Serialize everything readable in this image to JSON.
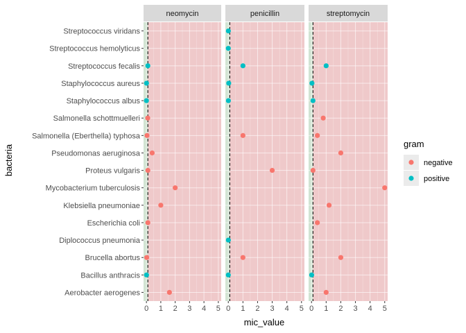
{
  "chart_data": {
    "type": "scatter",
    "xlabel": "mic_value",
    "ylabel": "bacteria",
    "xlim": [
      -0.2,
      5.2
    ],
    "xticks": [
      0,
      1,
      2,
      3,
      4,
      5
    ],
    "vline_x": 0.1,
    "shading": {
      "below_color": "#d2e4d3",
      "above_color": "#efc9ca"
    },
    "categories": [
      "Streptococcus viridans",
      "Streptococcus hemolyticus",
      "Streptococcus fecalis",
      "Staphylococcus aureus",
      "Staphylococcus albus",
      "Salmonella schottmuelleri",
      "Salmonella (Eberthella) typhosa",
      "Pseudomonas aeruginosa",
      "Proteus vulgaris",
      "Mycobacterium tuberculosis",
      "Klebsiella pneumoniae",
      "Escherichia coli",
      "Diplococcus pneumonia",
      "Brucella abortus",
      "Bacillus anthracis",
      "Aerobacter aerogenes"
    ],
    "legend": {
      "title": "gram",
      "position": "right",
      "entries": [
        {
          "label": "negative",
          "color": "#f8766d"
        },
        {
          "label": "positive",
          "color": "#00bfc4"
        }
      ]
    },
    "panels": [
      {
        "name": "neomycin",
        "points": [
          {
            "bacteria": "Streptococcus fecalis",
            "x": 0.1,
            "gram": "positive"
          },
          {
            "bacteria": "Staphylococcus aureus",
            "x": 0.007,
            "gram": "positive"
          },
          {
            "bacteria": "Staphylococcus albus",
            "x": 0.001,
            "gram": "positive"
          },
          {
            "bacteria": "Salmonella schottmuelleri",
            "x": 0.09,
            "gram": "negative"
          },
          {
            "bacteria": "Salmonella (Eberthella) typhosa",
            "x": 0.04,
            "gram": "negative"
          },
          {
            "bacteria": "Pseudomonas aeruginosa",
            "x": 0.4,
            "gram": "negative"
          },
          {
            "bacteria": "Proteus vulgaris",
            "x": 0.1,
            "gram": "negative"
          },
          {
            "bacteria": "Mycobacterium tuberculosis",
            "x": 2,
            "gram": "negative"
          },
          {
            "bacteria": "Klebsiella pneumoniae",
            "x": 1,
            "gram": "negative"
          },
          {
            "bacteria": "Escherichia coli",
            "x": 0.1,
            "gram": "negative"
          },
          {
            "bacteria": "Brucella abortus",
            "x": 0.02,
            "gram": "negative"
          },
          {
            "bacteria": "Bacillus anthracis",
            "x": 0.007,
            "gram": "positive"
          },
          {
            "bacteria": "Aerobacter aerogenes",
            "x": 1.6,
            "gram": "negative"
          }
        ]
      },
      {
        "name": "penicillin",
        "points": [
          {
            "bacteria": "Streptococcus viridans",
            "x": 0.005,
            "gram": "positive"
          },
          {
            "bacteria": "Streptococcus hemolyticus",
            "x": 0.001,
            "gram": "positive"
          },
          {
            "bacteria": "Streptococcus fecalis",
            "x": 1,
            "gram": "positive"
          },
          {
            "bacteria": "Staphylococcus aureus",
            "x": 0.03,
            "gram": "positive"
          },
          {
            "bacteria": "Staphylococcus albus",
            "x": 0.007,
            "gram": "positive"
          },
          {
            "bacteria": "Salmonella (Eberthella) typhosa",
            "x": 1,
            "gram": "negative"
          },
          {
            "bacteria": "Proteus vulgaris",
            "x": 3,
            "gram": "negative"
          },
          {
            "bacteria": "Diplococcus pneumonia",
            "x": 0.005,
            "gram": "positive"
          },
          {
            "bacteria": "Brucella abortus",
            "x": 1,
            "gram": "negative"
          },
          {
            "bacteria": "Bacillus anthracis",
            "x": 0.001,
            "gram": "positive"
          }
        ]
      },
      {
        "name": "streptomycin",
        "points": [
          {
            "bacteria": "Streptococcus fecalis",
            "x": 1,
            "gram": "positive"
          },
          {
            "bacteria": "Staphylococcus aureus",
            "x": 0.03,
            "gram": "positive"
          },
          {
            "bacteria": "Staphylococcus albus",
            "x": 0.1,
            "gram": "positive"
          },
          {
            "bacteria": "Salmonella schottmuelleri",
            "x": 0.8,
            "gram": "negative"
          },
          {
            "bacteria": "Salmonella (Eberthella) typhosa",
            "x": 0.4,
            "gram": "negative"
          },
          {
            "bacteria": "Pseudomonas aeruginosa",
            "x": 2,
            "gram": "negative"
          },
          {
            "bacteria": "Proteus vulgaris",
            "x": 0.1,
            "gram": "negative"
          },
          {
            "bacteria": "Mycobacterium tuberculosis",
            "x": 5,
            "gram": "negative"
          },
          {
            "bacteria": "Klebsiella pneumoniae",
            "x": 1.2,
            "gram": "negative"
          },
          {
            "bacteria": "Escherichia coli",
            "x": 0.4,
            "gram": "negative"
          },
          {
            "bacteria": "Brucella abortus",
            "x": 2,
            "gram": "negative"
          },
          {
            "bacteria": "Bacillus anthracis",
            "x": 0.01,
            "gram": "positive"
          },
          {
            "bacteria": "Aerobacter aerogenes",
            "x": 1,
            "gram": "negative"
          }
        ]
      }
    ]
  }
}
